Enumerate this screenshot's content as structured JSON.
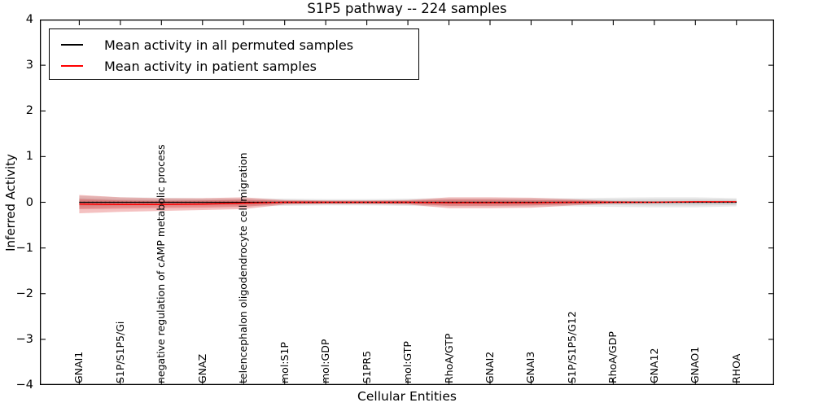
{
  "title": "S1P5 pathway -- 224 samples",
  "chart_data": {
    "type": "line",
    "title": "S1P5 pathway -- 224 samples",
    "xlabel": "Cellular Entities",
    "ylabel": "Inferred Activity",
    "ylim": [
      -4,
      4
    ],
    "ytick_labels": [
      "4",
      "3",
      "2",
      "1",
      "0",
      "−1",
      "−2",
      "−3",
      "−4"
    ],
    "grid": false,
    "legend_position": "upper left",
    "categories": [
      "GNAI1",
      "S1P/S1P5/Gi",
      "negative regulation of cAMP metabolic process",
      "GNAZ",
      "telencephalon oligodendrocyte cell migration",
      "mol:S1P",
      "mol:GDP",
      "S1PR5",
      "mol:GTP",
      "RhoA/GTP",
      "GNAI2",
      "GNAI3",
      "S1P/S1P5/G12",
      "RhoA/GDP",
      "GNA12",
      "GNAO1",
      "RHOA"
    ],
    "series": [
      {
        "name": "Mean activity in all permuted samples",
        "color": "#000000",
        "band_color": "rgba(120,120,120,0.16)",
        "values": [
          0,
          0,
          0,
          0,
          0,
          0,
          0,
          0,
          0,
          0,
          0,
          0,
          0,
          0,
          0,
          0,
          0
        ],
        "band_outer": [
          0.14,
          0.11,
          0.1,
          0.09,
          0.09,
          0.08,
          0.07,
          0.07,
          0.08,
          0.09,
          0.09,
          0.09,
          0.09,
          0.1,
          0.11,
          0.11,
          0.09
        ],
        "band_inner": [
          0.09,
          0.07,
          0.06,
          0.06,
          0.06,
          0.05,
          0.04,
          0.04,
          0.05,
          0.06,
          0.06,
          0.06,
          0.06,
          0.06,
          0.07,
          0.07,
          0.06
        ]
      },
      {
        "name": "Mean activity in patient samples",
        "color": "#ff0000",
        "band_color": "rgba(220,50,50,0.30)",
        "values": [
          -0.04,
          -0.05,
          -0.05,
          -0.04,
          -0.02,
          0,
          0,
          0,
          0,
          -0.01,
          -0.01,
          -0.01,
          0,
          0,
          0,
          0.01,
          0.01
        ],
        "band_outer": [
          0.2,
          0.16,
          0.14,
          0.13,
          0.13,
          0.05,
          0.04,
          0.04,
          0.05,
          0.12,
          0.12,
          0.11,
          0.07,
          0.03,
          0.02,
          0.02,
          0.02
        ],
        "band_inner": [
          0.11,
          0.09,
          0.08,
          0.08,
          0.08,
          0.03,
          0.02,
          0.02,
          0.03,
          0.07,
          0.07,
          0.06,
          0.04,
          0.02,
          0.01,
          0.01,
          0.01
        ]
      }
    ],
    "zero_line": {
      "show": true,
      "style": "dotted",
      "color": "#000000"
    }
  }
}
